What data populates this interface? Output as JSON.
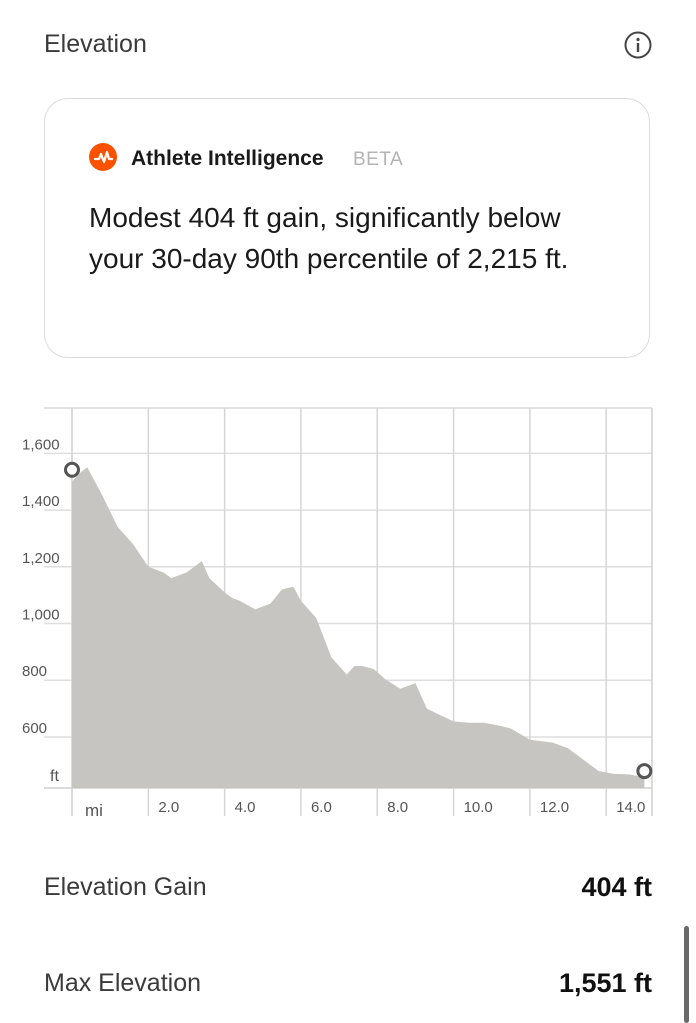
{
  "header": {
    "title": "Elevation",
    "info_icon": "info-circle-icon"
  },
  "ai_card": {
    "logo_icon": "strava-logo-icon",
    "brand_color": "#FC5200",
    "title": "Athlete Intelligence",
    "badge": "BETA",
    "message": "Modest 404 ft gain, significantly below your 30-day 90th percentile of 2,215 ft."
  },
  "chart_data": {
    "type": "area",
    "fill_color": "#c6c5c1",
    "grid": true,
    "xlabel": "mi",
    "ylabel": "ft",
    "xlim": [
      0,
      15.2
    ],
    "ylim": [
      420,
      1760
    ],
    "x_ticks": [
      2,
      4,
      6,
      8,
      10,
      12,
      14
    ],
    "x_tick_labels": [
      "2.0",
      "4.0",
      "6.0",
      "8.0",
      "10.0",
      "12.0",
      "14.0"
    ],
    "y_ticks": [
      600,
      800,
      1000,
      1200,
      1400,
      1600
    ],
    "y_tick_labels": [
      "600",
      "800",
      "1,000",
      "1,200",
      "1,400",
      "1,600"
    ],
    "x": [
      0,
      0.2,
      0.4,
      0.8,
      1.2,
      1.6,
      2.0,
      2.4,
      2.6,
      3.0,
      3.4,
      3.6,
      4.0,
      4.2,
      4.4,
      4.8,
      5.2,
      5.5,
      5.8,
      6.0,
      6.4,
      6.6,
      6.8,
      7.2,
      7.4,
      7.6,
      7.9,
      8.2,
      8.6,
      9.0,
      9.3,
      9.6,
      10.0,
      10.4,
      10.8,
      11.2,
      11.5,
      12.0,
      12.6,
      13.0,
      13.4,
      13.8,
      14.2,
      14.6,
      14.9,
      15.0
    ],
    "y": [
      1500,
      1530,
      1551,
      1450,
      1340,
      1280,
      1200,
      1180,
      1160,
      1180,
      1220,
      1160,
      1110,
      1090,
      1080,
      1050,
      1070,
      1120,
      1130,
      1080,
      1020,
      950,
      880,
      820,
      850,
      850,
      840,
      805,
      770,
      790,
      700,
      680,
      655,
      650,
      650,
      640,
      630,
      590,
      580,
      560,
      520,
      480,
      470,
      468,
      460,
      455
    ],
    "start_marker": true,
    "end_marker": true
  },
  "stats": [
    {
      "label": "Elevation Gain",
      "value": "404 ft"
    },
    {
      "label": "Max Elevation",
      "value": "1,551 ft"
    }
  ]
}
